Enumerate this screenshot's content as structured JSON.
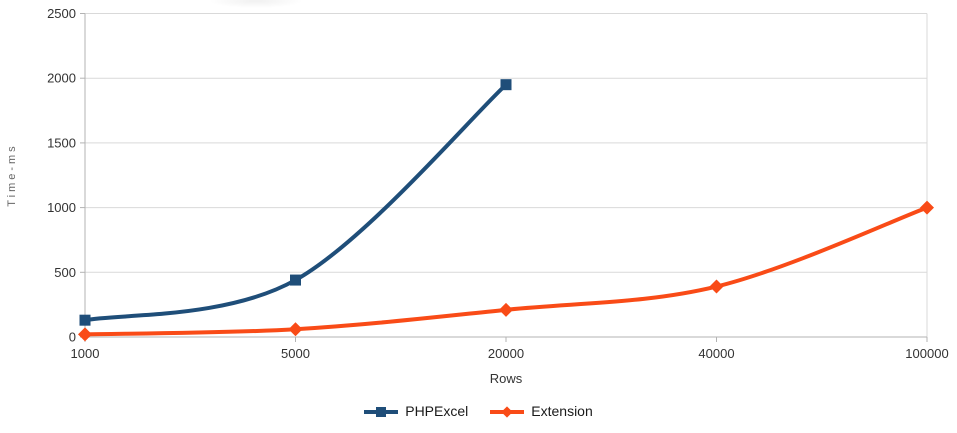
{
  "chart_data": {
    "type": "line",
    "title": "",
    "xlabel": "Rows",
    "ylabel": "Time-ms",
    "categories": [
      1000,
      5000,
      20000,
      40000,
      100000
    ],
    "x_axis_type": "category-evenly-spaced",
    "ylim": [
      0,
      2500
    ],
    "yticks": [
      0,
      500,
      1000,
      1500,
      2000,
      2500
    ],
    "grid": "horizontal-only",
    "legend_position": "bottom-center",
    "series": [
      {
        "name": "PHPExcel",
        "color": "#1f4e79",
        "marker": "square",
        "line_width": 4,
        "values": [
          130,
          440,
          1950,
          null,
          null
        ]
      },
      {
        "name": "Extension",
        "color": "#f94b17",
        "marker": "diamond",
        "line_width": 4,
        "values": [
          20,
          60,
          210,
          390,
          1000
        ]
      }
    ],
    "colors": {
      "background": "#ffffff",
      "gridline": "#d9d9d9",
      "axis": "#b3b3b3",
      "tick_label": "#333333",
      "axis_title": "#666666"
    }
  }
}
